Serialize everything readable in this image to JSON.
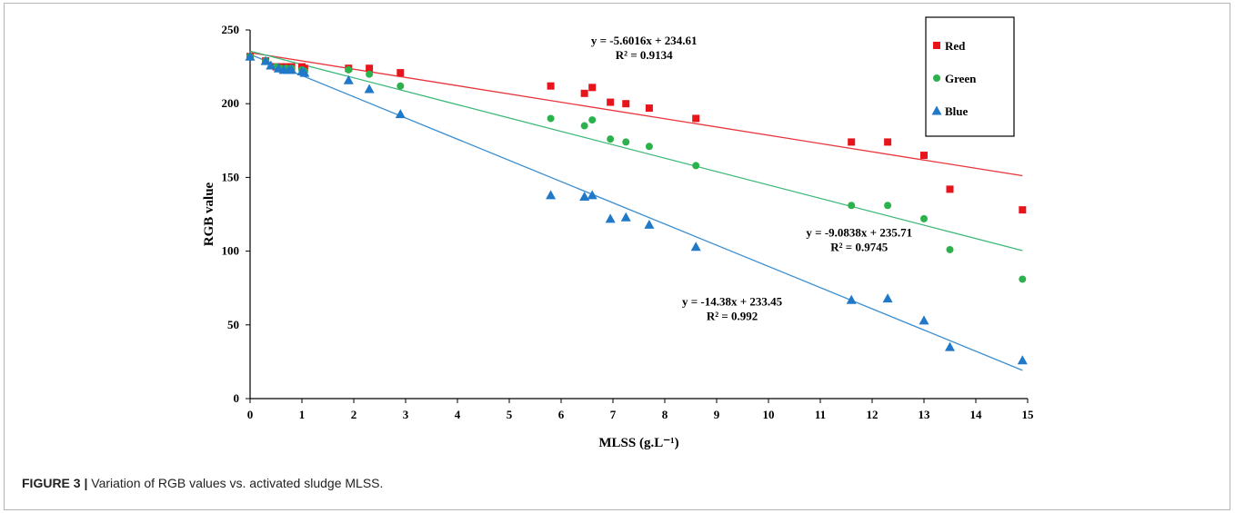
{
  "figure": {
    "caption_label": "FIGURE 3 |",
    "caption_text": " Variation of RGB values vs. activated sludge MLSS."
  },
  "chart_data": {
    "type": "scatter",
    "xlabel": "MLSS (g.L⁻¹)",
    "ylabel": "RGB value",
    "xlim": [
      0,
      15
    ],
    "ylim": [
      0,
      250
    ],
    "x_ticks": [
      "0",
      "1",
      "2",
      "3",
      "4",
      "5",
      "6",
      "7",
      "8",
      "9",
      "10",
      "11",
      "12",
      "13",
      "14",
      "15"
    ],
    "y_ticks": [
      "0",
      "50",
      "100",
      "150",
      "200",
      "250"
    ],
    "grid": false,
    "legend_position": "top-right",
    "series": [
      {
        "name": "Red",
        "color": "#e8141b",
        "marker": "square",
        "points": [
          [
            0,
            232
          ],
          [
            0.3,
            229
          ],
          [
            0.5,
            225
          ],
          [
            0.6,
            225
          ],
          [
            0.7,
            225
          ],
          [
            0.8,
            225
          ],
          [
            1.0,
            225
          ],
          [
            1.05,
            224
          ],
          [
            1.9,
            224
          ],
          [
            2.3,
            224
          ],
          [
            2.9,
            221
          ],
          [
            5.8,
            212
          ],
          [
            6.45,
            207
          ],
          [
            6.6,
            211
          ],
          [
            6.95,
            201
          ],
          [
            7.25,
            200
          ],
          [
            7.7,
            197
          ],
          [
            8.6,
            190
          ],
          [
            11.6,
            174
          ],
          [
            12.3,
            174
          ],
          [
            13.0,
            165
          ],
          [
            13.5,
            142
          ],
          [
            14.9,
            128
          ]
        ],
        "trendline": {
          "slope": -5.6016,
          "intercept": 234.61,
          "color": "#e8343a"
        },
        "equation": "y = -5.6016x + 234.61",
        "r2": "R² = 0.9134"
      },
      {
        "name": "Green",
        "color": "#2bb24c",
        "marker": "circle",
        "points": [
          [
            0,
            232
          ],
          [
            0.3,
            229
          ],
          [
            0.5,
            225
          ],
          [
            0.6,
            224
          ],
          [
            0.7,
            224
          ],
          [
            0.8,
            224
          ],
          [
            1.0,
            223
          ],
          [
            1.05,
            222
          ],
          [
            1.9,
            223
          ],
          [
            2.3,
            220
          ],
          [
            2.9,
            212
          ],
          [
            5.8,
            190
          ],
          [
            6.45,
            185
          ],
          [
            6.6,
            189
          ],
          [
            6.95,
            176
          ],
          [
            7.25,
            174
          ],
          [
            7.7,
            171
          ],
          [
            8.6,
            158
          ],
          [
            11.6,
            131
          ],
          [
            12.3,
            131
          ],
          [
            13.0,
            122
          ],
          [
            13.5,
            101
          ],
          [
            14.9,
            81
          ]
        ],
        "trendline": {
          "slope": -9.0838,
          "intercept": 235.71,
          "color": "#3cb878"
        },
        "equation": "y = -9.0838x + 235.71",
        "r2": "R² = 0.9745"
      },
      {
        "name": "Blue",
        "color": "#1f78c8",
        "marker": "triangle",
        "points": [
          [
            0,
            232
          ],
          [
            0.3,
            229
          ],
          [
            0.4,
            226
          ],
          [
            0.55,
            224
          ],
          [
            0.65,
            223
          ],
          [
            0.75,
            223
          ],
          [
            0.8,
            223
          ],
          [
            1.0,
            222
          ],
          [
            1.05,
            221
          ],
          [
            1.9,
            216
          ],
          [
            2.3,
            210
          ],
          [
            2.9,
            193
          ],
          [
            5.8,
            138
          ],
          [
            6.45,
            137
          ],
          [
            6.6,
            138
          ],
          [
            6.95,
            122
          ],
          [
            7.25,
            123
          ],
          [
            7.7,
            118
          ],
          [
            8.6,
            103
          ],
          [
            11.6,
            67
          ],
          [
            12.3,
            68
          ],
          [
            13.0,
            53
          ],
          [
            13.5,
            35
          ],
          [
            14.9,
            26
          ]
        ],
        "trendline": {
          "slope": -14.38,
          "intercept": 233.45,
          "color": "#3b8ed0"
        },
        "equation": "y = -14.38x + 233.45",
        "r2": "R² = 0.992"
      }
    ],
    "annotations": [
      {
        "series": "Red",
        "x": 7.6,
        "y": 240
      },
      {
        "series": "Green",
        "x": 11.75,
        "y": 110
      },
      {
        "series": "Blue",
        "x": 9.3,
        "y": 63
      }
    ]
  }
}
